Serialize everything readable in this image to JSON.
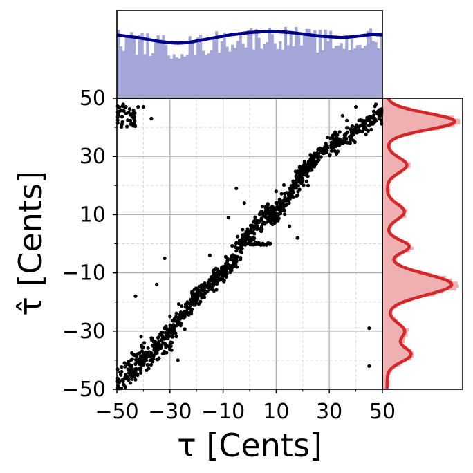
{
  "chart_data": {
    "type": "scatter",
    "xlabel": "τ [Cents]",
    "ylabel": "τ̂ [Cents]",
    "xlim": [
      -50,
      50
    ],
    "ylim": [
      -50,
      50
    ],
    "x_ticks": [
      "−50",
      "−30",
      "−10",
      "10",
      "30",
      "50"
    ],
    "y_ticks": [
      "−50",
      "−30",
      "−10",
      "10",
      "30",
      "50"
    ],
    "grid": true,
    "colors": {
      "points": "#000000",
      "top_hist": "#a3a6d6",
      "top_kde": "#00008b",
      "right_hist": "#f0b0b2",
      "right_kde": "#d62728",
      "major_grid": "#b0b0b0",
      "minor_grid": "#d8d8d8"
    },
    "scatter": {
      "main_trend_segments": [
        {
          "x": [
            -50,
            -30
          ],
          "y": [
            -48,
            -32
          ],
          "spread": 3.2,
          "count": 230
        },
        {
          "x": [
            -30,
            -20
          ],
          "y": [
            -30,
            -18
          ],
          "spread": 2.0,
          "count": 110
        },
        {
          "x": [
            -20,
            -5
          ],
          "y": [
            -18,
            -5
          ],
          "spread": 2.0,
          "count": 190
        },
        {
          "x": [
            -5,
            8
          ],
          "y": [
            -2,
            12
          ],
          "spread": 2.2,
          "count": 150
        },
        {
          "x": [
            8,
            22
          ],
          "y": [
            8,
            26
          ],
          "spread": 2.2,
          "count": 160
        },
        {
          "x": [
            18,
            25
          ],
          "y": [
            23,
            30
          ],
          "spread": 1.5,
          "count": 80
        },
        {
          "x": [
            25,
            50
          ],
          "y": [
            30,
            45
          ],
          "spread": 2.0,
          "count": 230
        }
      ],
      "flat_line": {
        "x": [
          -5,
          8
        ],
        "y": 0,
        "count": 40
      },
      "top_left_cluster": {
        "x": [
          -50,
          -43
        ],
        "y": [
          40,
          48
        ],
        "count": 40
      },
      "outliers": [
        [
          -42,
          47
        ],
        [
          -40,
          47
        ],
        [
          -37,
          43
        ],
        [
          -27,
          -40
        ],
        [
          -43,
          -18
        ],
        [
          -35,
          -14
        ],
        [
          -32,
          -5
        ],
        [
          -5,
          19
        ],
        [
          -3,
          -3
        ],
        [
          18,
          2
        ],
        [
          45,
          -29
        ],
        [
          45,
          -42
        ],
        [
          -8,
          9
        ],
        [
          -2,
          14
        ],
        [
          22,
          20
        ],
        [
          15,
          6
        ],
        [
          -15,
          -4
        ],
        [
          10,
          18
        ],
        [
          -30,
          -25
        ],
        [
          40,
          47
        ],
        [
          35,
          44
        ]
      ]
    },
    "top_histogram": {
      "bins": 100,
      "density_shape": [
        1.0,
        0.98,
        0.96,
        0.93,
        0.9,
        0.88,
        0.87,
        0.88,
        0.91,
        0.94,
        0.97,
        1.0,
        1.02,
        1.04,
        1.05,
        1.06,
        1.05,
        1.04,
        1.02,
        1.0,
        0.98,
        0.97,
        0.96,
        0.97,
        0.99,
        1.01,
        1.0
      ],
      "kde_level_fraction": 0.72
    },
    "right_histogram": {
      "peaks": [
        {
          "y": 42,
          "height": 0.86,
          "width": 2.8
        },
        {
          "y": 27,
          "height": 0.25,
          "width": 2.6
        },
        {
          "y": 11,
          "height": 0.22,
          "width": 2.6
        },
        {
          "y": -1,
          "height": 0.28,
          "width": 2.2
        },
        {
          "y": -14,
          "height": 0.82,
          "width": 3.6
        },
        {
          "y": -30,
          "height": 0.22,
          "width": 2.8
        },
        {
          "y": -38,
          "height": 0.3,
          "width": 2.6
        }
      ],
      "baseline": 0.06
    }
  }
}
